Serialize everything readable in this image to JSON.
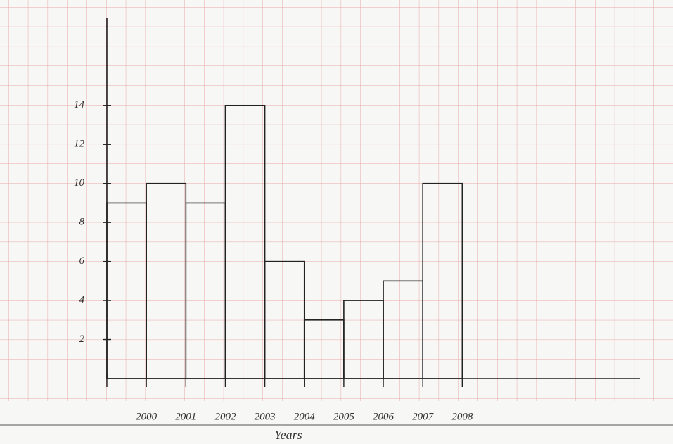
{
  "chart_data": {
    "type": "histogram",
    "x_label": "Years",
    "bins": [
      1999,
      2000,
      2001,
      2002,
      2003,
      2004,
      2005,
      2006,
      2007,
      2008
    ],
    "bin_labels": [
      null,
      "2000",
      "2001",
      "2002",
      "2003",
      "2004",
      "2005",
      "2006",
      "2007",
      "2008"
    ],
    "values": [
      9,
      10,
      9,
      14,
      6,
      3,
      4,
      5,
      10
    ],
    "xlim": [
      1999,
      2012.5
    ],
    "ylim": [
      0,
      18.5
    ],
    "yticks": [
      2,
      4,
      6,
      8,
      10,
      12,
      14
    ],
    "color": "#222222"
  }
}
